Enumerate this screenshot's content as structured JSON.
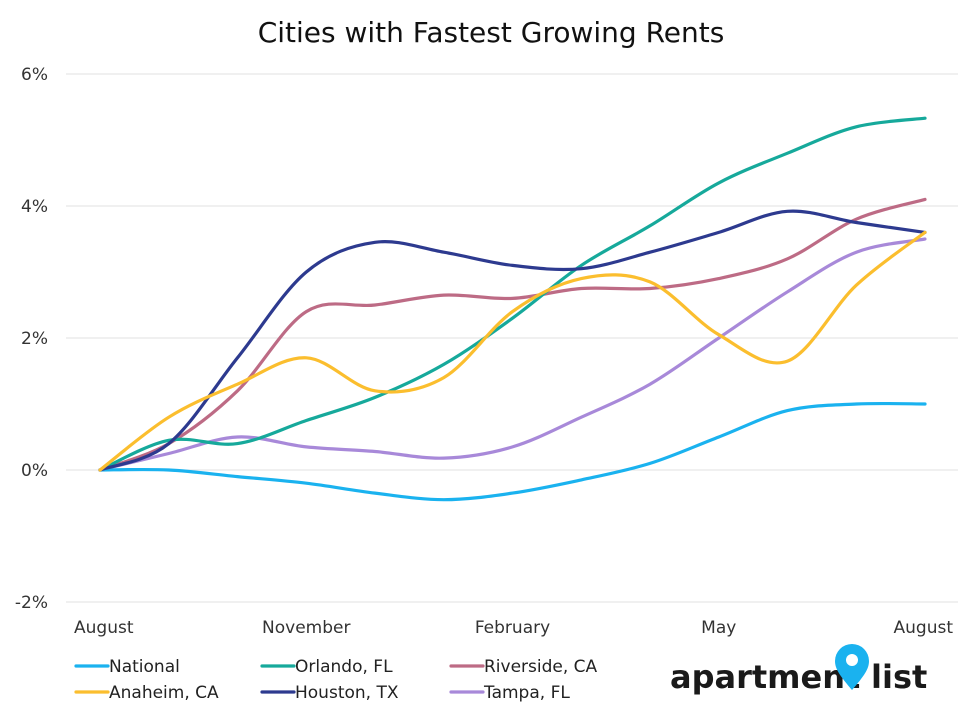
{
  "chart_data": {
    "type": "line",
    "title": "Cities with Fastest Growing Rents",
    "xlabel": "",
    "ylabel": "",
    "x_ticks": [
      "August",
      "November",
      "February",
      "May",
      "August"
    ],
    "y_ticks": [
      "6%",
      "4%",
      "2%",
      "0%",
      "-2%"
    ],
    "y_tick_values": [
      6,
      4,
      2,
      0,
      -2
    ],
    "ylim": [
      -2,
      6
    ],
    "x_months": [
      0,
      1,
      2,
      3,
      4,
      5,
      6,
      7,
      8,
      9,
      10,
      11,
      12
    ],
    "grid": true,
    "legend_position": "bottom",
    "series": [
      {
        "name": "National",
        "color": "#1ab2ef",
        "values": [
          0,
          0,
          -0.1,
          -0.2,
          -0.35,
          -0.45,
          -0.35,
          -0.15,
          0.1,
          0.5,
          0.9,
          1.0,
          1.0
        ]
      },
      {
        "name": "Orlando, FL",
        "color": "#16a99b",
        "values": [
          0,
          0.45,
          0.4,
          0.75,
          1.1,
          1.6,
          2.3,
          3.1,
          3.7,
          4.35,
          4.8,
          5.2,
          5.33
        ]
      },
      {
        "name": "Riverside, CA",
        "color": "#bd6b85",
        "values": [
          0,
          0.4,
          1.2,
          2.4,
          2.5,
          2.65,
          2.6,
          2.75,
          2.75,
          2.9,
          3.2,
          3.8,
          4.1
        ]
      },
      {
        "name": "Anaheim, CA",
        "color": "#fbbe2e",
        "values": [
          0,
          0.8,
          1.3,
          1.7,
          1.2,
          1.4,
          2.4,
          2.9,
          2.85,
          2.05,
          1.65,
          2.8,
          3.6
        ]
      },
      {
        "name": "Houston, TX",
        "color": "#2d3a8f",
        "values": [
          0,
          0.4,
          1.7,
          3.0,
          3.45,
          3.3,
          3.1,
          3.05,
          3.3,
          3.6,
          3.92,
          3.75,
          3.6
        ]
      },
      {
        "name": "Tampa, FL",
        "color": "#a889d9",
        "values": [
          0,
          0.25,
          0.5,
          0.35,
          0.28,
          0.18,
          0.35,
          0.8,
          1.3,
          2.0,
          2.7,
          3.3,
          3.5
        ]
      }
    ]
  },
  "brand": {
    "left": "apartment",
    "right": "list",
    "pin_color": "#1ab2ef"
  }
}
